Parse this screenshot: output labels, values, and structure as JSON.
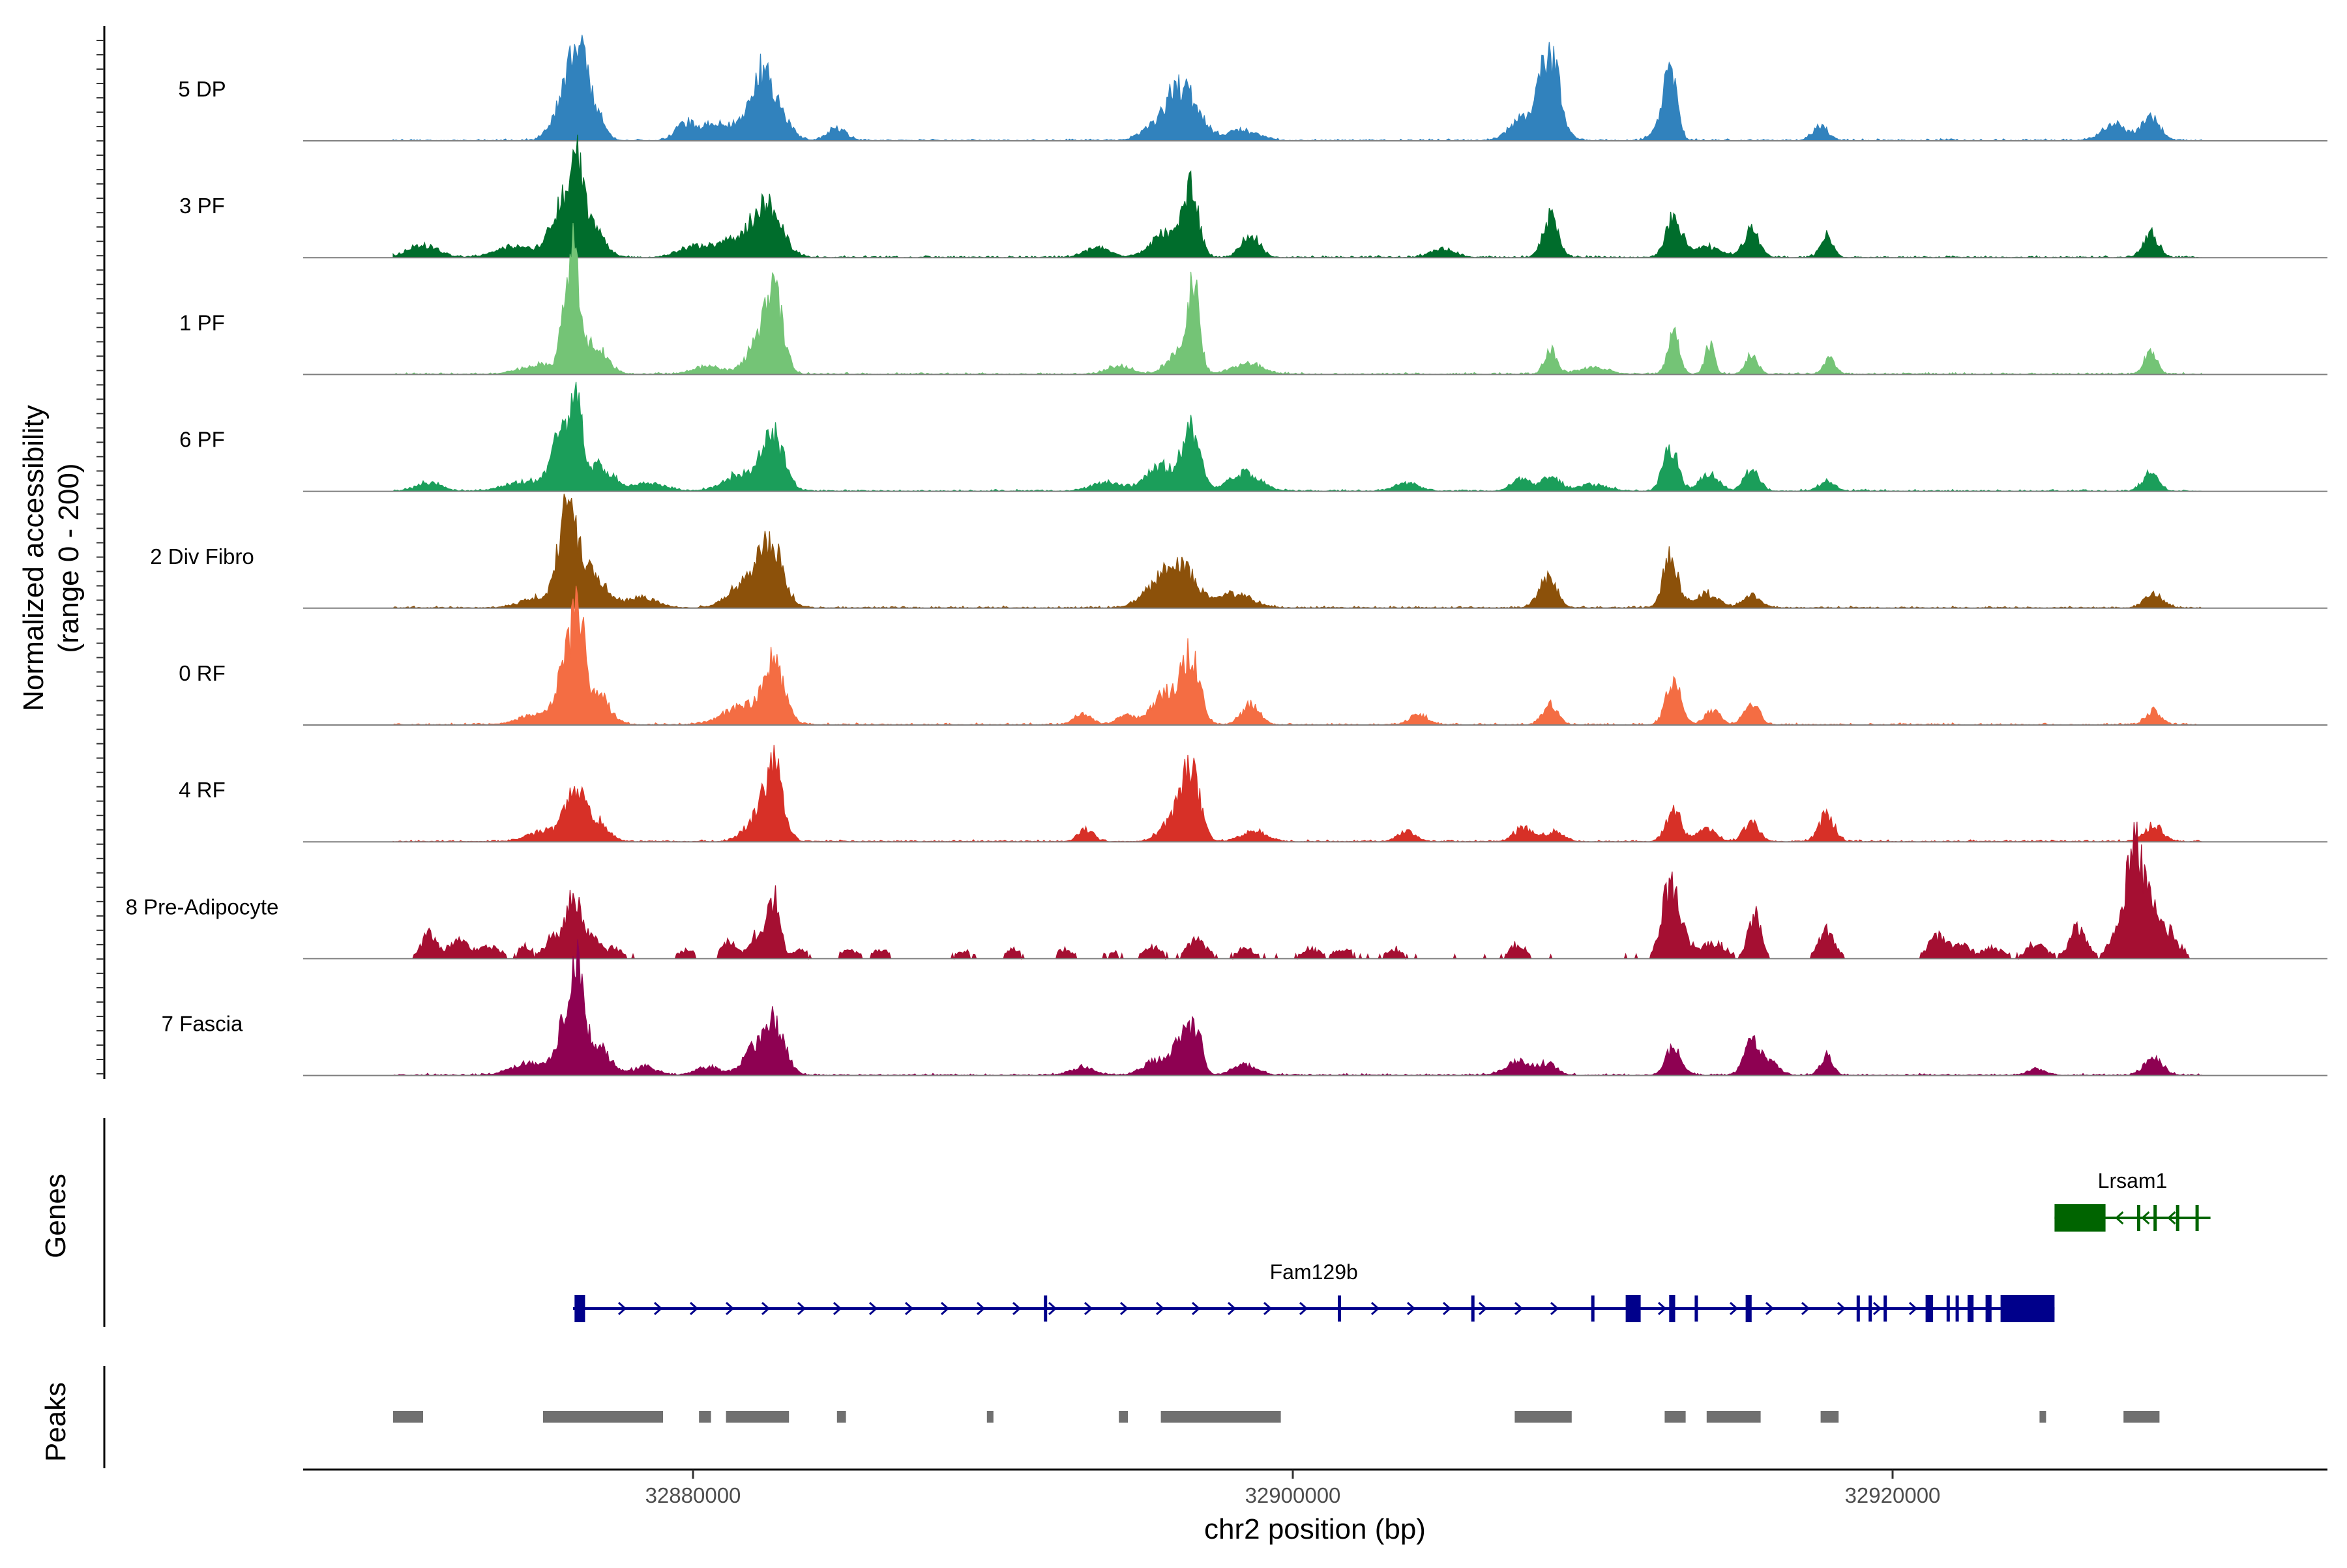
{
  "chart_data": {
    "type": "area",
    "title": "",
    "region": {
      "chrom": "chr2",
      "start": 32867000,
      "end": 32934500
    },
    "xlabel": "chr2 position (bp)",
    "x_ticks": [
      32880000,
      32900000,
      32920000
    ],
    "x_tick_labels": [
      "32880000",
      "32900000",
      "32920000"
    ],
    "ylabel": "Normalized accessibility",
    "ylabel_range": "(range 0 - 200)",
    "ylim": [
      0,
      200
    ],
    "coverage_extent": [
      32870000,
      32930300
    ],
    "tracks": [
      {
        "name": "5 DP",
        "color": "#3182BD",
        "peaks": [
          [
            32875800,
            48,
            400
          ],
          [
            32876200,
            62,
            250
          ],
          [
            32876700,
            28,
            300
          ],
          [
            32882500,
            44,
            500
          ],
          [
            32882200,
            28,
            300
          ],
          [
            32880800,
            18,
            600
          ],
          [
            32879700,
            14,
            300
          ],
          [
            32884800,
            12,
            300
          ],
          [
            32896500,
            40,
            450
          ],
          [
            32896000,
            26,
            350
          ],
          [
            32895300,
            12,
            400
          ],
          [
            32898300,
            10,
            500
          ],
          [
            32908600,
            62,
            300
          ],
          [
            32908300,
            28,
            500
          ],
          [
            32907500,
            12,
            400
          ],
          [
            32912600,
            52,
            200
          ],
          [
            32912400,
            22,
            300
          ],
          [
            32917600,
            14,
            250
          ],
          [
            32927400,
            16,
            400
          ],
          [
            32928600,
            22,
            300
          ]
        ]
      },
      {
        "name": "3 PF",
        "color": "#006D2C",
        "peaks": [
          [
            32871000,
            12,
            500
          ],
          [
            32875600,
            45,
            400
          ],
          [
            32876100,
            68,
            250
          ],
          [
            32876600,
            30,
            400
          ],
          [
            32874000,
            10,
            600
          ],
          [
            32882500,
            50,
            450
          ],
          [
            32881500,
            18,
            600
          ],
          [
            32880000,
            10,
            500
          ],
          [
            32893500,
            10,
            400
          ],
          [
            32895800,
            25,
            500
          ],
          [
            32896600,
            62,
            250
          ],
          [
            32898600,
            22,
            300
          ],
          [
            32905000,
            8,
            400
          ],
          [
            32908600,
            40,
            250
          ],
          [
            32912700,
            42,
            250
          ],
          [
            32915300,
            28,
            250
          ],
          [
            32917800,
            22,
            200
          ],
          [
            32913800,
            10,
            500
          ],
          [
            32928600,
            24,
            250
          ]
        ]
      },
      {
        "name": "1 PF",
        "color": "#74C476",
        "peaks": [
          [
            32875800,
            70,
            200
          ],
          [
            32876100,
            86,
            150
          ],
          [
            32876700,
            30,
            400
          ],
          [
            32874900,
            10,
            600
          ],
          [
            32882700,
            70,
            300
          ],
          [
            32882200,
            30,
            400
          ],
          [
            32880500,
            8,
            500
          ],
          [
            32896700,
            78,
            200
          ],
          [
            32896200,
            20,
            400
          ],
          [
            32898500,
            10,
            500
          ],
          [
            32894200,
            8,
            400
          ],
          [
            32908600,
            26,
            200
          ],
          [
            32912700,
            38,
            200
          ],
          [
            32913900,
            30,
            150
          ],
          [
            32915300,
            18,
            200
          ],
          [
            32917900,
            14,
            200
          ],
          [
            32910000,
            6,
            500
          ],
          [
            32928600,
            24,
            200
          ]
        ]
      },
      {
        "name": "6 PF",
        "color": "#1B9E5A",
        "peaks": [
          [
            32875600,
            52,
            300
          ],
          [
            32876100,
            74,
            200
          ],
          [
            32876800,
            25,
            500
          ],
          [
            32874500,
            10,
            700
          ],
          [
            32882700,
            52,
            350
          ],
          [
            32881700,
            18,
            600
          ],
          [
            32871200,
            8,
            400
          ],
          [
            32878600,
            8,
            500
          ],
          [
            32896600,
            56,
            300
          ],
          [
            32895600,
            24,
            500
          ],
          [
            32898400,
            18,
            500
          ],
          [
            32893800,
            8,
            500
          ],
          [
            32903800,
            8,
            400
          ],
          [
            32907600,
            12,
            300
          ],
          [
            32908600,
            14,
            300
          ],
          [
            32912600,
            44,
            250
          ],
          [
            32913900,
            18,
            300
          ],
          [
            32915300,
            20,
            250
          ],
          [
            32917800,
            10,
            250
          ],
          [
            32910000,
            6,
            500
          ],
          [
            32928600,
            18,
            250
          ]
        ]
      },
      {
        "name": "2 Div Fibro",
        "color": "#8C510A",
        "peaks": [
          [
            32875800,
            80,
            300
          ],
          [
            32876500,
            38,
            500
          ],
          [
            32874900,
            10,
            600
          ],
          [
            32878300,
            10,
            500
          ],
          [
            32882600,
            60,
            400
          ],
          [
            32881700,
            24,
            500
          ],
          [
            32896300,
            38,
            450
          ],
          [
            32895500,
            22,
            500
          ],
          [
            32898000,
            14,
            600
          ],
          [
            32908500,
            30,
            300
          ],
          [
            32912600,
            50,
            250
          ],
          [
            32913800,
            14,
            400
          ],
          [
            32915300,
            12,
            300
          ],
          [
            32928700,
            14,
            300
          ]
        ]
      },
      {
        "name": "0 RF",
        "color": "#F46D43",
        "peaks": [
          [
            32875800,
            60,
            300
          ],
          [
            32876200,
            76,
            200
          ],
          [
            32876800,
            30,
            400
          ],
          [
            32874800,
            10,
            600
          ],
          [
            32882700,
            60,
            350
          ],
          [
            32881600,
            18,
            600
          ],
          [
            32896600,
            64,
            300
          ],
          [
            32895800,
            30,
            500
          ],
          [
            32898600,
            20,
            300
          ],
          [
            32893000,
            10,
            300
          ],
          [
            32894400,
            8,
            300
          ],
          [
            32904200,
            10,
            300
          ],
          [
            32908600,
            20,
            250
          ],
          [
            32912700,
            44,
            250
          ],
          [
            32914000,
            14,
            250
          ],
          [
            32915300,
            22,
            250
          ],
          [
            32928700,
            14,
            250
          ]
        ]
      },
      {
        "name": "4 RF",
        "color": "#D73027",
        "peaks": [
          [
            32876000,
            50,
            300
          ],
          [
            32876700,
            22,
            400
          ],
          [
            32875000,
            10,
            500
          ],
          [
            32882700,
            70,
            300
          ],
          [
            32882100,
            20,
            400
          ],
          [
            32896600,
            66,
            300
          ],
          [
            32896000,
            20,
            400
          ],
          [
            32898700,
            10,
            400
          ],
          [
            32893100,
            12,
            250
          ],
          [
            32903800,
            10,
            300
          ],
          [
            32907700,
            14,
            300
          ],
          [
            32908700,
            10,
            300
          ],
          [
            32912700,
            30,
            250
          ],
          [
            32913800,
            12,
            300
          ],
          [
            32915300,
            20,
            250
          ],
          [
            32917800,
            26,
            250
          ],
          [
            32928700,
            16,
            300
          ]
        ]
      },
      {
        "name": "8 Pre-Adipocyte",
        "color": "#A50F32",
        "peaks": [
          [
            32871200,
            24,
            250
          ],
          [
            32872200,
            18,
            300
          ],
          [
            32873200,
            12,
            300
          ],
          [
            32874400,
            12,
            200
          ],
          [
            32875300,
            20,
            250
          ],
          [
            32876000,
            56,
            250
          ],
          [
            32876600,
            18,
            300
          ],
          [
            32877400,
            10,
            200
          ],
          [
            32879800,
            8,
            200
          ],
          [
            32881200,
            14,
            250
          ],
          [
            32882100,
            20,
            250
          ],
          [
            32882700,
            60,
            200
          ],
          [
            32883600,
            8,
            250
          ],
          [
            32885200,
            8,
            200
          ],
          [
            32886300,
            8,
            200
          ],
          [
            32889000,
            6,
            200
          ],
          [
            32890700,
            8,
            200
          ],
          [
            32892400,
            8,
            200
          ],
          [
            32894000,
            6,
            200
          ],
          [
            32895300,
            10,
            300
          ],
          [
            32896800,
            18,
            300
          ],
          [
            32898400,
            10,
            250
          ],
          [
            32900600,
            8,
            300
          ],
          [
            32901700,
            8,
            300
          ],
          [
            32903400,
            8,
            250
          ],
          [
            32907500,
            12,
            250
          ],
          [
            32912500,
            56,
            250
          ],
          [
            32912900,
            34,
            250
          ],
          [
            32914000,
            14,
            400
          ],
          [
            32915400,
            44,
            200
          ],
          [
            32917800,
            28,
            250
          ],
          [
            32921500,
            20,
            300
          ],
          [
            32922300,
            12,
            300
          ],
          [
            32923400,
            10,
            300
          ],
          [
            32924800,
            14,
            300
          ],
          [
            32926200,
            28,
            300
          ],
          [
            32927500,
            30,
            250
          ],
          [
            32928000,
            96,
            200
          ],
          [
            32928400,
            58,
            300
          ],
          [
            32929100,
            26,
            400
          ]
        ]
      },
      {
        "name": "7 Fascia",
        "color": "#8E0152",
        "peaks": [
          [
            32875800,
            56,
            300
          ],
          [
            32876200,
            76,
            200
          ],
          [
            32876800,
            28,
            400
          ],
          [
            32874600,
            12,
            600
          ],
          [
            32878400,
            8,
            400
          ],
          [
            32882700,
            52,
            350
          ],
          [
            32882000,
            22,
            400
          ],
          [
            32880500,
            8,
            400
          ],
          [
            32896300,
            38,
            300
          ],
          [
            32896800,
            36,
            200
          ],
          [
            32895400,
            14,
            400
          ],
          [
            32898400,
            10,
            400
          ],
          [
            32893000,
            8,
            400
          ],
          [
            32907500,
            14,
            400
          ],
          [
            32908500,
            12,
            300
          ],
          [
            32912700,
            28,
            250
          ],
          [
            32915300,
            34,
            250
          ],
          [
            32915900,
            12,
            300
          ],
          [
            32917800,
            20,
            200
          ],
          [
            32924800,
            6,
            300
          ],
          [
            32928700,
            16,
            300
          ]
        ]
      }
    ],
    "genes": [
      {
        "name": "Lrsam1",
        "strand": "-",
        "color": "#006400",
        "span": [
          32925400,
          32930600
        ],
        "exons": [
          [
            32925400,
            32927100
          ],
          [
            32928150,
            32928250
          ],
          [
            32928700,
            32928800
          ],
          [
            32929450,
            32929550
          ],
          [
            32930100,
            32930200
          ]
        ]
      },
      {
        "name": "Fam129b",
        "strand": "+",
        "color": "#00008B",
        "span": [
          32876000,
          32925400
        ],
        "exons": [
          [
            32876050,
            32876400
          ],
          [
            32891700,
            32891780
          ],
          [
            32901500,
            32901580
          ],
          [
            32905950,
            32906050
          ],
          [
            32909950,
            32910050
          ],
          [
            32911100,
            32911600
          ],
          [
            32912550,
            32912750
          ],
          [
            32913400,
            32913480
          ],
          [
            32915100,
            32915300
          ],
          [
            32918800,
            32918900
          ],
          [
            32919200,
            32919300
          ],
          [
            32919700,
            32919800
          ],
          [
            32921100,
            32921350
          ],
          [
            32921800,
            32921900
          ],
          [
            32922100,
            32922200
          ],
          [
            32922500,
            32922700
          ],
          [
            32923100,
            32923300
          ],
          [
            32923600,
            32925400
          ]
        ]
      }
    ],
    "peaks_track": {
      "label": "Peaks",
      "color": "#707070",
      "intervals": [
        [
          32870000,
          32871000
        ],
        [
          32875000,
          32879000
        ],
        [
          32880200,
          32880600
        ],
        [
          32881100,
          32883200
        ],
        [
          32884800,
          32885100
        ],
        [
          32889800,
          32890000
        ],
        [
          32894200,
          32894500
        ],
        [
          32895600,
          32899600
        ],
        [
          32907400,
          32909300
        ],
        [
          32912400,
          32913100
        ],
        [
          32913800,
          32915600
        ],
        [
          32917600,
          32918200
        ],
        [
          32924900,
          32925100
        ],
        [
          32927700,
          32928900
        ]
      ]
    },
    "panel_labels": {
      "genes": "Genes",
      "peaks": "Peaks"
    }
  }
}
